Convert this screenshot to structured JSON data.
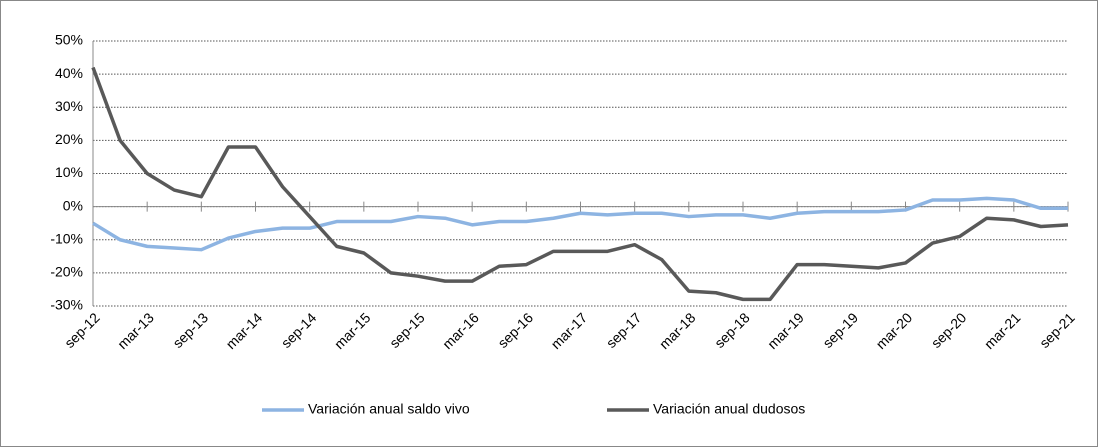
{
  "chart_data": {
    "type": "line",
    "categories": [
      "sep-12",
      null,
      "mar-13",
      null,
      "sep-13",
      null,
      "mar-14",
      null,
      "sep-14",
      null,
      "mar-15",
      null,
      "sep-15",
      null,
      "mar-16",
      null,
      "sep-16",
      null,
      "mar-17",
      null,
      "sep-17",
      null,
      "mar-18",
      null,
      "sep-18",
      null,
      "mar-19",
      null,
      "sep-19",
      null,
      "mar-20",
      null,
      "sep-20",
      null,
      "mar-21",
      null,
      "sep-21"
    ],
    "series": [
      {
        "name": "Variación anual saldo vivo",
        "color": "#8db4e2",
        "values": [
          -5,
          -10,
          -12,
          -12.5,
          -13,
          -9.5,
          -7.5,
          -6.5,
          -6.5,
          -4.5,
          -4.5,
          -4.5,
          -3,
          -3.5,
          -5.5,
          -4.5,
          -4.5,
          -3.5,
          -2,
          -2.5,
          -2,
          -2,
          -3,
          -2.5,
          -2.5,
          -3.5,
          -2,
          -1.5,
          -1.5,
          -1.5,
          -1,
          2,
          2,
          2.5,
          2,
          -0.5,
          -0.5
        ]
      },
      {
        "name": "Variación anual dudosos",
        "color": "#595959",
        "values": [
          42,
          20,
          10,
          5,
          3,
          18,
          18,
          6,
          -3,
          -12,
          -14,
          -20,
          -21,
          -22.5,
          -22.5,
          -18,
          -17.5,
          -13.5,
          -13.5,
          -13.5,
          -11.5,
          -16,
          -25.5,
          -26,
          -28,
          -28,
          -17.5,
          -17.5,
          -18,
          -18.5,
          -17,
          -11,
          -9,
          -3.5,
          -4,
          -6,
          -5.5
        ]
      }
    ],
    "ylim": [
      -30,
      50
    ],
    "yticks": [
      {
        "value": -30,
        "label": "-30%"
      },
      {
        "value": -20,
        "label": "-20%"
      },
      {
        "value": -10,
        "label": "-10%"
      },
      {
        "value": 0,
        "label": "0%"
      },
      {
        "value": 10,
        "label": "10%"
      },
      {
        "value": 20,
        "label": "20%"
      },
      {
        "value": 30,
        "label": "30%"
      },
      {
        "value": 40,
        "label": "40%"
      },
      {
        "value": 50,
        "label": "50%"
      }
    ],
    "grid": true,
    "legend": "bottom"
  }
}
